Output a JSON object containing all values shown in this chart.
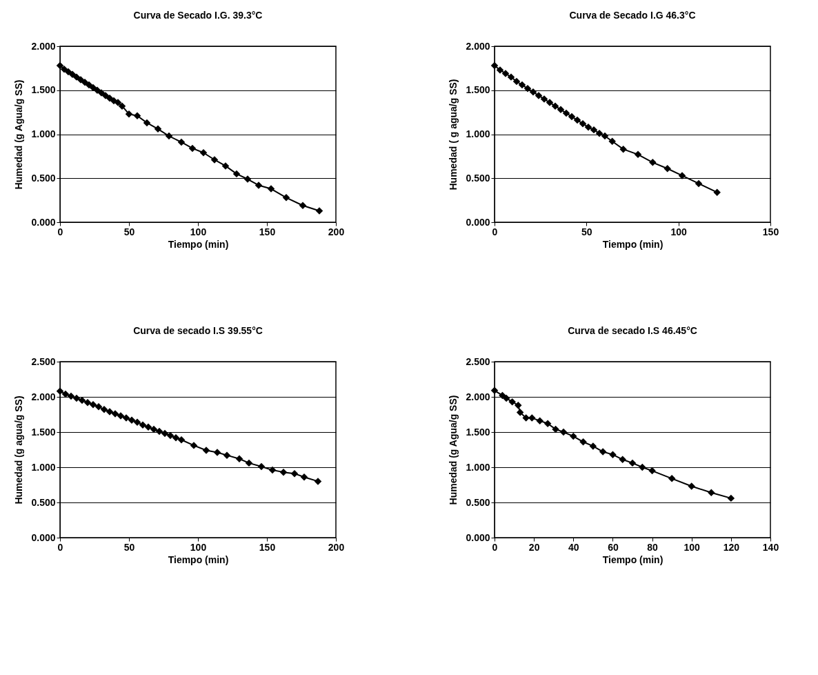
{
  "chart_data": [
    {
      "type": "line",
      "title": "Curva de Secado I.G. 39.3°C",
      "xlabel": "Tiempo (min)",
      "ylabel": "Humedad (g Agua/g SS)",
      "xlim": [
        0,
        200
      ],
      "xticks": [
        0,
        50,
        100,
        150,
        200
      ],
      "ylim": [
        0,
        2
      ],
      "yticks": [
        {
          "value": 0,
          "label": "0.000"
        },
        {
          "value": 0.5,
          "label": "0.500"
        },
        {
          "value": 1,
          "label": "1.000"
        },
        {
          "value": 1.5,
          "label": "1.500"
        },
        {
          "value": 2,
          "label": "2.000"
        }
      ],
      "grid": "y",
      "marker": "diamond",
      "line_style": "solid",
      "series": [
        {
          "color": "#000000",
          "x": [
            0,
            3,
            6,
            9,
            12,
            15,
            18,
            21,
            24,
            27,
            30,
            33,
            36,
            39,
            42,
            45,
            50,
            56,
            63,
            71,
            79,
            88,
            96,
            104,
            112,
            120,
            128,
            136,
            144,
            153,
            164,
            176,
            188
          ],
          "values": [
            1.78,
            1.74,
            1.71,
            1.68,
            1.65,
            1.62,
            1.59,
            1.56,
            1.53,
            1.5,
            1.47,
            1.44,
            1.41,
            1.38,
            1.36,
            1.32,
            1.23,
            1.21,
            1.13,
            1.06,
            0.98,
            0.91,
            0.84,
            0.79,
            0.71,
            0.64,
            0.55,
            0.49,
            0.42,
            0.38,
            0.28,
            0.19,
            0.13
          ]
        }
      ]
    },
    {
      "type": "line",
      "title": "Curva de Secado I.G 46.3°C",
      "xlabel": "Tiempo (min)",
      "ylabel": "Humedad ( g agua/g SS)",
      "xlim": [
        0,
        150
      ],
      "xticks": [
        0,
        50,
        100,
        150
      ],
      "ylim": [
        0,
        2
      ],
      "yticks": [
        {
          "value": 0,
          "label": "0.000"
        },
        {
          "value": 0.5,
          "label": "0.500"
        },
        {
          "value": 1,
          "label": "1.000"
        },
        {
          "value": 1.5,
          "label": "1.500"
        },
        {
          "value": 2,
          "label": "2.000"
        }
      ],
      "grid": "y",
      "marker": "diamond",
      "line_style": "solid",
      "series": [
        {
          "color": "#000000",
          "x": [
            0,
            3,
            6,
            9,
            12,
            15,
            18,
            21,
            24,
            27,
            30,
            33,
            36,
            39,
            42,
            45,
            48,
            51,
            54,
            57,
            60,
            64,
            70,
            78,
            86,
            94,
            102,
            111,
            121
          ],
          "values": [
            1.78,
            1.73,
            1.69,
            1.65,
            1.6,
            1.56,
            1.52,
            1.48,
            1.44,
            1.4,
            1.36,
            1.32,
            1.28,
            1.24,
            1.2,
            1.16,
            1.12,
            1.08,
            1.05,
            1.01,
            0.98,
            0.92,
            0.83,
            0.77,
            0.68,
            0.61,
            0.53,
            0.44,
            0.34
          ]
        }
      ]
    },
    {
      "type": "line",
      "title": "Curva de secado I.S 39.55°C",
      "xlabel": "Tiempo (min)",
      "ylabel": "Humedad (g agua/g SS)",
      "xlim": [
        0,
        200
      ],
      "xticks": [
        0,
        50,
        100,
        150,
        200
      ],
      "ylim": [
        0,
        2.5
      ],
      "yticks": [
        {
          "value": 0,
          "label": "0.000"
        },
        {
          "value": 0.5,
          "label": "0.500"
        },
        {
          "value": 1,
          "label": "1.000"
        },
        {
          "value": 1.5,
          "label": "1.500"
        },
        {
          "value": 2,
          "label": "2.000"
        },
        {
          "value": 2.5,
          "label": "2.500"
        }
      ],
      "grid": "y",
      "marker": "diamond",
      "line_style": "solid",
      "series": [
        {
          "color": "#000000",
          "x": [
            0,
            4,
            8,
            12,
            16,
            20,
            24,
            28,
            32,
            36,
            40,
            44,
            48,
            52,
            56,
            60,
            64,
            68,
            72,
            76,
            80,
            84,
            88,
            97,
            106,
            114,
            121,
            130,
            137,
            146,
            154,
            162,
            170,
            177,
            187
          ],
          "values": [
            2.08,
            2.04,
            2.01,
            1.98,
            1.95,
            1.92,
            1.89,
            1.86,
            1.82,
            1.79,
            1.76,
            1.73,
            1.7,
            1.67,
            1.64,
            1.6,
            1.57,
            1.54,
            1.51,
            1.48,
            1.45,
            1.42,
            1.39,
            1.31,
            1.24,
            1.21,
            1.17,
            1.12,
            1.06,
            1.01,
            0.96,
            0.93,
            0.91,
            0.86,
            0.8
          ]
        }
      ]
    },
    {
      "type": "line",
      "title": "Curva de secado I.S 46.45°C",
      "xlabel": "Tiempo (min)",
      "ylabel": "Humedad (g Agua/g SS)",
      "xlim": [
        0,
        140
      ],
      "xticks": [
        0,
        20,
        40,
        60,
        80,
        100,
        120,
        140
      ],
      "ylim": [
        0,
        2.5
      ],
      "yticks": [
        {
          "value": 0,
          "label": "0.000"
        },
        {
          "value": 0.5,
          "label": "0.500"
        },
        {
          "value": 1,
          "label": "1.000"
        },
        {
          "value": 1.5,
          "label": "1.500"
        },
        {
          "value": 2,
          "label": "2.000"
        },
        {
          "value": 2.5,
          "label": "2.500"
        }
      ],
      "grid": "y",
      "marker": "diamond",
      "line_style": "solid",
      "series": [
        {
          "color": "#000000",
          "x": [
            0,
            4,
            6,
            9,
            12,
            13,
            16,
            19,
            23,
            27,
            31,
            35,
            40,
            45,
            50,
            55,
            60,
            65,
            70,
            75,
            80,
            90,
            100,
            110,
            120
          ],
          "values": [
            2.09,
            2.02,
            1.98,
            1.93,
            1.88,
            1.78,
            1.7,
            1.7,
            1.66,
            1.62,
            1.54,
            1.5,
            1.44,
            1.36,
            1.3,
            1.22,
            1.18,
            1.11,
            1.06,
            1.0,
            0.95,
            0.84,
            0.73,
            0.64,
            0.56
          ]
        }
      ]
    }
  ]
}
